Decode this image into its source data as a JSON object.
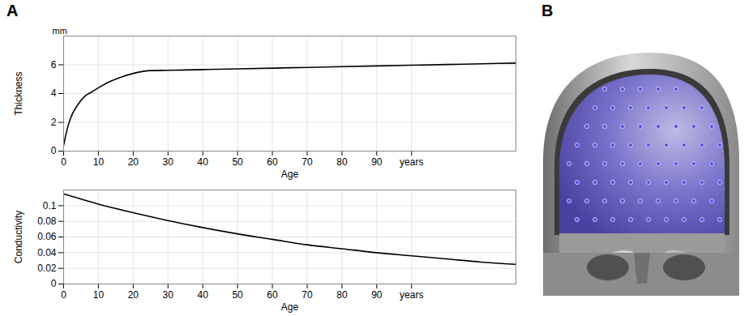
{
  "panel_letters": [
    "A",
    "B"
  ],
  "chart_data": [
    {
      "type": "line",
      "y_label": "Thickness",
      "y_unit": "mm",
      "x_label": "Age",
      "x": [
        0,
        1,
        2,
        4,
        6,
        8,
        10,
        13,
        16,
        20,
        25,
        30,
        40,
        50,
        60,
        70,
        80,
        90,
        100,
        110,
        120,
        130
      ],
      "values": [
        0.4,
        1.5,
        2.3,
        3.2,
        3.8,
        4.1,
        4.4,
        4.8,
        5.1,
        5.4,
        5.6,
        5.62,
        5.67,
        5.72,
        5.77,
        5.82,
        5.87,
        5.92,
        5.97,
        6.02,
        6.07,
        6.12
      ],
      "color": "#000000",
      "xlim": [
        0,
        130
      ],
      "xticks": [
        0,
        10,
        20,
        30,
        40,
        50,
        60,
        70,
        80,
        90,
        {
          "value": 100,
          "label": "years"
        }
      ],
      "ylim": [
        0,
        8
      ],
      "yticks": [
        0,
        2,
        4,
        6
      ],
      "grid": true
    },
    {
      "type": "line",
      "y_label": "Conductivity",
      "x_label": "Age",
      "x": [
        0,
        10,
        20,
        30,
        40,
        50,
        60,
        70,
        80,
        90,
        100,
        110,
        120,
        130
      ],
      "values": [
        0.115,
        0.102,
        0.091,
        0.081,
        0.072,
        0.064,
        0.057,
        0.05,
        0.045,
        0.04,
        0.036,
        0.032,
        0.028,
        0.025
      ],
      "color": "#000000",
      "xlim": [
        0,
        130
      ],
      "xticks": [
        0,
        10,
        20,
        30,
        40,
        50,
        60,
        70,
        80,
        90,
        {
          "value": 100,
          "label": "years"
        }
      ],
      "ylim": [
        0,
        0.12
      ],
      "yticks": [
        0,
        0.02,
        0.04,
        0.06,
        0.08,
        0.1
      ],
      "grid": true
    }
  ]
}
